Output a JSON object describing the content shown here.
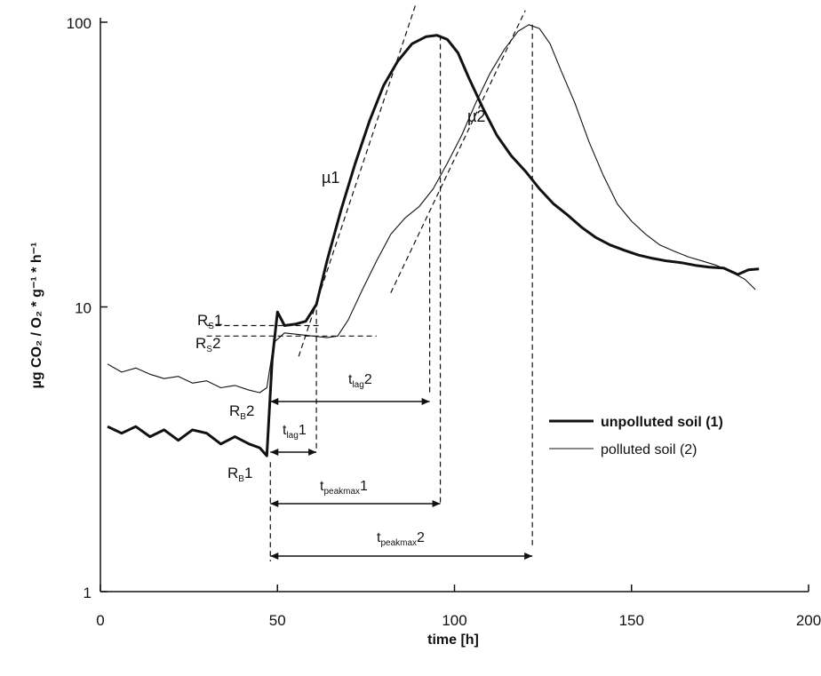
{
  "chart_data": {
    "type": "line",
    "xlabel": "time [h]",
    "ylabel": "µg CO₂ / O₂ * g⁻¹ * h⁻¹",
    "xlim": [
      0,
      200
    ],
    "ylim": [
      1,
      100
    ],
    "yscale": "log",
    "grid": false,
    "legend_position": "right",
    "x_ticks": [
      "0",
      "50",
      "100",
      "150",
      "200"
    ],
    "y_ticks": [
      {
        "value": 1,
        "label": "1"
      },
      {
        "value": 10,
        "label": "10"
      },
      {
        "value": 100,
        "label": "100"
      }
    ],
    "series": [
      {
        "name": "unpolluted soil (1)",
        "style": "thick",
        "x": [
          2,
          6,
          10,
          14,
          18,
          22,
          26,
          30,
          34,
          38,
          42,
          45,
          47,
          48.5,
          50,
          52,
          55,
          58,
          61,
          64,
          68,
          72,
          76,
          80,
          84,
          88,
          92,
          95,
          98,
          101,
          104,
          108,
          112,
          116,
          120,
          124,
          128,
          132,
          136,
          140,
          144,
          148,
          152,
          156,
          160,
          164,
          168,
          172,
          176,
          180,
          183,
          186
        ],
        "y": [
          3.8,
          3.6,
          3.8,
          3.5,
          3.7,
          3.4,
          3.7,
          3.6,
          3.3,
          3.5,
          3.3,
          3.2,
          3.0,
          6.5,
          9.6,
          8.6,
          8.7,
          8.9,
          10.2,
          14.5,
          22,
          32,
          45,
          60,
          73,
          84,
          89,
          90,
          87,
          78,
          64,
          50,
          40,
          34,
          30,
          26,
          23,
          21,
          19,
          17.5,
          16.5,
          15.8,
          15.2,
          14.8,
          14.5,
          14.3,
          14.0,
          13.8,
          13.7,
          13.0,
          13.5,
          13.6
        ]
      },
      {
        "name": "polluted soil (2)",
        "style": "thin",
        "x": [
          2,
          6,
          10,
          14,
          18,
          22,
          26,
          30,
          34,
          38,
          42,
          45,
          47,
          49,
          52,
          56,
          60,
          64,
          67,
          70,
          74,
          78,
          82,
          86,
          90,
          94,
          98,
          102,
          106,
          110,
          114,
          118,
          121,
          124,
          127,
          130,
          134,
          138,
          142,
          146,
          150,
          154,
          158,
          162,
          166,
          170,
          174,
          178,
          182,
          185
        ],
        "y": [
          6.3,
          5.9,
          6.1,
          5.8,
          5.6,
          5.7,
          5.4,
          5.5,
          5.2,
          5.3,
          5.1,
          5.0,
          5.2,
          7.5,
          8.1,
          8.0,
          7.9,
          7.8,
          7.9,
          9.0,
          11.5,
          14.5,
          18,
          20.5,
          22.5,
          26,
          32,
          40,
          52,
          66,
          80,
          93,
          98,
          95,
          84,
          68,
          52,
          38,
          29,
          23,
          20,
          18,
          16.5,
          15.7,
          15.0,
          14.5,
          14.0,
          13.3,
          12.5,
          11.5
        ]
      }
    ],
    "annotations": {
      "mu1": "µ1",
      "mu2": "µ2",
      "rs1_upper": {
        "main": "R",
        "sub": "S",
        "suffix": "1"
      },
      "rs2": {
        "main": "R",
        "sub": "S",
        "suffix": "2"
      },
      "rb2": {
        "main": "R",
        "sub": "B",
        "suffix": "2"
      },
      "rb1_lower": {
        "main": "R",
        "sub": "B",
        "suffix": "1"
      },
      "tlag1": {
        "main": "t",
        "sub": "lag",
        "suffix": "1",
        "x_from": 48,
        "x_to": 61
      },
      "tlag2": {
        "main": "t",
        "sub": "lag",
        "suffix": "2",
        "x_from": 48,
        "x_to": 93
      },
      "tpeakmax1": {
        "main": "t",
        "sub": "peakmax",
        "suffix": "1",
        "x_from": 48,
        "x_to": 96
      },
      "tpeakmax2": {
        "main": "t",
        "sub": "peakmax",
        "suffix": "2",
        "x_from": 48,
        "x_to": 122
      }
    }
  }
}
